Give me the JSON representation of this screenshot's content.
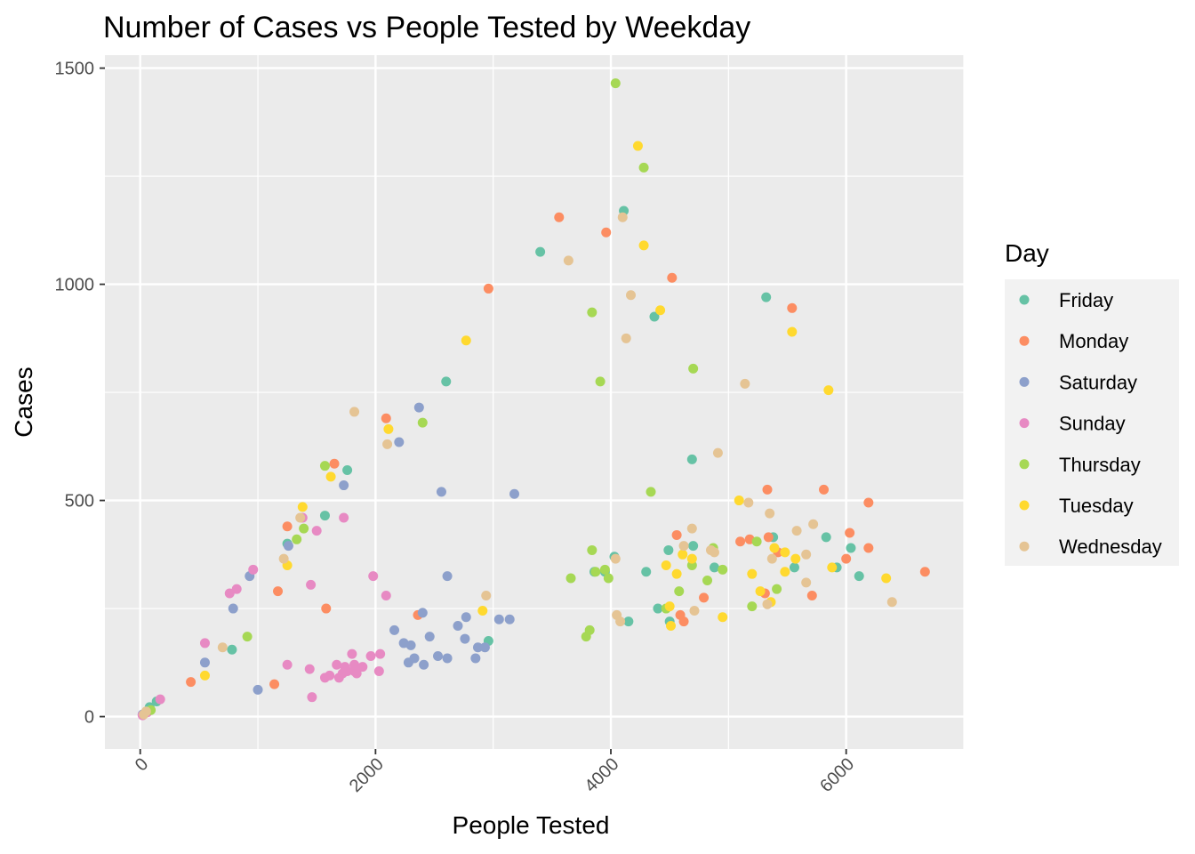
{
  "chart_data": {
    "type": "scatter",
    "title": "Number of Cases vs People Tested by Weekday",
    "xlabel": "People Tested",
    "ylabel": "Cases",
    "xlim": [
      -300,
      7000
    ],
    "ylim": [
      -75,
      1530
    ],
    "xticks": [
      0,
      2000,
      4000,
      6000
    ],
    "xtick_labels": [
      "0",
      "2000",
      "4000",
      "6000"
    ],
    "yticks": [
      0,
      500,
      1000,
      1500
    ],
    "ytick_labels": [
      "0",
      "500",
      "1000",
      "1500"
    ],
    "grid": true,
    "legend_title": "Day",
    "legend_position": "right",
    "series": [
      {
        "name": "Friday",
        "color": "#66c2a5",
        "points": [
          [
            80,
            22
          ],
          [
            140,
            35
          ],
          [
            780,
            155
          ],
          [
            1250,
            400
          ],
          [
            1570,
            465
          ],
          [
            1760,
            570
          ],
          [
            2600,
            775
          ],
          [
            2960,
            175
          ],
          [
            3400,
            1075
          ],
          [
            3860,
            335
          ],
          [
            3950,
            335
          ],
          [
            4030,
            370
          ],
          [
            4110,
            1170
          ],
          [
            4150,
            220
          ],
          [
            4300,
            335
          ],
          [
            4370,
            925
          ],
          [
            4400,
            250
          ],
          [
            4490,
            385
          ],
          [
            4500,
            220
          ],
          [
            4690,
            595
          ],
          [
            4700,
            395
          ],
          [
            4880,
            345
          ],
          [
            5320,
            970
          ],
          [
            5380,
            415
          ],
          [
            5560,
            345
          ],
          [
            5830,
            415
          ],
          [
            5920,
            345
          ],
          [
            6040,
            390
          ],
          [
            6110,
            325
          ]
        ]
      },
      {
        "name": "Monday",
        "color": "#fc8d62",
        "points": [
          [
            430,
            80
          ],
          [
            1140,
            75
          ],
          [
            1170,
            290
          ],
          [
            1250,
            440
          ],
          [
            1580,
            250
          ],
          [
            1650,
            585
          ],
          [
            2090,
            690
          ],
          [
            2360,
            235
          ],
          [
            2960,
            990
          ],
          [
            3560,
            1155
          ],
          [
            3960,
            1120
          ],
          [
            4520,
            1015
          ],
          [
            4560,
            420
          ],
          [
            4590,
            235
          ],
          [
            4620,
            220
          ],
          [
            4790,
            275
          ],
          [
            5100,
            405
          ],
          [
            5180,
            410
          ],
          [
            5310,
            285
          ],
          [
            5330,
            525
          ],
          [
            5340,
            415
          ],
          [
            5420,
            380
          ],
          [
            5540,
            945
          ],
          [
            5710,
            280
          ],
          [
            5810,
            525
          ],
          [
            6000,
            365
          ],
          [
            6030,
            425
          ],
          [
            6190,
            390
          ],
          [
            6190,
            495
          ],
          [
            6670,
            335
          ]
        ]
      },
      {
        "name": "Saturday",
        "color": "#8da0cb",
        "points": [
          [
            20,
            5
          ],
          [
            550,
            125
          ],
          [
            930,
            325
          ],
          [
            790,
            250
          ],
          [
            1000,
            62
          ],
          [
            1260,
            395
          ],
          [
            1730,
            535
          ],
          [
            2160,
            200
          ],
          [
            2200,
            635
          ],
          [
            2240,
            170
          ],
          [
            2280,
            125
          ],
          [
            2300,
            165
          ],
          [
            2330,
            135
          ],
          [
            2370,
            715
          ],
          [
            2400,
            240
          ],
          [
            2410,
            120
          ],
          [
            2460,
            185
          ],
          [
            2530,
            140
          ],
          [
            2560,
            520
          ],
          [
            2610,
            135
          ],
          [
            2610,
            325
          ],
          [
            2700,
            210
          ],
          [
            2760,
            180
          ],
          [
            2770,
            230
          ],
          [
            2850,
            135
          ],
          [
            2870,
            160
          ],
          [
            2930,
            160
          ],
          [
            3050,
            225
          ],
          [
            3140,
            225
          ],
          [
            3180,
            515
          ]
        ]
      },
      {
        "name": "Sunday",
        "color": "#e78ac3",
        "points": [
          [
            20,
            3
          ],
          [
            60,
            10
          ],
          [
            170,
            40
          ],
          [
            550,
            170
          ],
          [
            760,
            285
          ],
          [
            820,
            295
          ],
          [
            960,
            340
          ],
          [
            1250,
            120
          ],
          [
            1380,
            460
          ],
          [
            1440,
            110
          ],
          [
            1450,
            305
          ],
          [
            1460,
            45
          ],
          [
            1500,
            430
          ],
          [
            1570,
            90
          ],
          [
            1610,
            95
          ],
          [
            1670,
            120
          ],
          [
            1690,
            90
          ],
          [
            1720,
            100
          ],
          [
            1730,
            460
          ],
          [
            1740,
            115
          ],
          [
            1760,
            105
          ],
          [
            1800,
            145
          ],
          [
            1820,
            105
          ],
          [
            1820,
            120
          ],
          [
            1840,
            100
          ],
          [
            1890,
            115
          ],
          [
            1960,
            140
          ],
          [
            1980,
            325
          ],
          [
            2030,
            105
          ],
          [
            2040,
            145
          ],
          [
            2090,
            280
          ]
        ]
      },
      {
        "name": "Thursday",
        "color": "#a6d854",
        "points": [
          [
            90,
            15
          ],
          [
            910,
            185
          ],
          [
            1330,
            410
          ],
          [
            1390,
            435
          ],
          [
            1570,
            580
          ],
          [
            2400,
            680
          ],
          [
            3660,
            320
          ],
          [
            3790,
            185
          ],
          [
            3820,
            200
          ],
          [
            3840,
            385
          ],
          [
            3840,
            935
          ],
          [
            3870,
            335
          ],
          [
            3910,
            775
          ],
          [
            3950,
            340
          ],
          [
            3980,
            320
          ],
          [
            4040,
            1465
          ],
          [
            4280,
            1270
          ],
          [
            4340,
            520
          ],
          [
            4470,
            250
          ],
          [
            4580,
            290
          ],
          [
            4690,
            350
          ],
          [
            4700,
            805
          ],
          [
            4820,
            315
          ],
          [
            4870,
            390
          ],
          [
            4950,
            340
          ],
          [
            5200,
            255
          ],
          [
            5240,
            405
          ],
          [
            5410,
            295
          ]
        ]
      },
      {
        "name": "Tuesday",
        "color": "#ffd92f",
        "points": [
          [
            550,
            95
          ],
          [
            1250,
            350
          ],
          [
            1380,
            485
          ],
          [
            1620,
            555
          ],
          [
            2110,
            665
          ],
          [
            2770,
            870
          ],
          [
            2910,
            245
          ],
          [
            4230,
            1320
          ],
          [
            4280,
            1090
          ],
          [
            4420,
            940
          ],
          [
            4470,
            350
          ],
          [
            4500,
            255
          ],
          [
            4510,
            210
          ],
          [
            4560,
            330
          ],
          [
            4610,
            375
          ],
          [
            4690,
            365
          ],
          [
            4950,
            230
          ],
          [
            5090,
            500
          ],
          [
            5200,
            330
          ],
          [
            5270,
            290
          ],
          [
            5360,
            265
          ],
          [
            5390,
            390
          ],
          [
            5480,
            335
          ],
          [
            5480,
            380
          ],
          [
            5540,
            890
          ],
          [
            5570,
            365
          ],
          [
            5850,
            755
          ],
          [
            5880,
            345
          ],
          [
            6340,
            320
          ]
        ]
      },
      {
        "name": "Wednesday",
        "color": "#e5c494",
        "points": [
          [
            30,
            5
          ],
          [
            50,
            12
          ],
          [
            700,
            160
          ],
          [
            1220,
            365
          ],
          [
            1360,
            460
          ],
          [
            1820,
            705
          ],
          [
            2100,
            630
          ],
          [
            2940,
            280
          ],
          [
            3640,
            1055
          ],
          [
            4040,
            365
          ],
          [
            4050,
            235
          ],
          [
            4080,
            220
          ],
          [
            4100,
            1155
          ],
          [
            4130,
            875
          ],
          [
            4170,
            975
          ],
          [
            4620,
            395
          ],
          [
            4690,
            435
          ],
          [
            4710,
            245
          ],
          [
            4850,
            385
          ],
          [
            4880,
            380
          ],
          [
            4910,
            610
          ],
          [
            5140,
            770
          ],
          [
            5170,
            495
          ],
          [
            5330,
            260
          ],
          [
            5350,
            470
          ],
          [
            5370,
            365
          ],
          [
            5580,
            430
          ],
          [
            5660,
            375
          ],
          [
            5660,
            310
          ],
          [
            5720,
            445
          ],
          [
            6390,
            265
          ]
        ]
      }
    ]
  }
}
